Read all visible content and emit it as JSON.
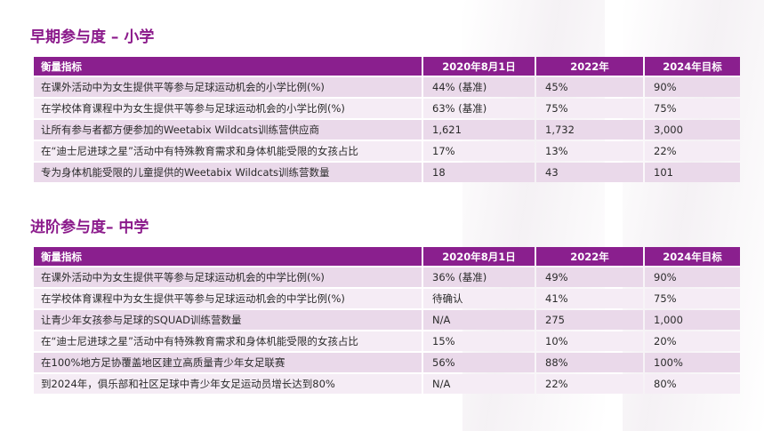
{
  "sections": [
    {
      "title": "早期参与度 – 小学",
      "headers": [
        "衡量指标",
        "2020年8月1日",
        "2022年",
        "2024年目标"
      ],
      "rows": [
        [
          "在课外活动中为女生提供平等参与足球运动机会的小学比例(%)",
          "44% (基准)",
          "45%",
          "90%"
        ],
        [
          "在学校体育课程中为女生提供平等参与足球运动机会的小学比例(%)",
          "63% (基准)",
          "75%",
          "75%"
        ],
        [
          "让所有参与者都方便参加的Weetabix Wildcats训练营供应商",
          "1,621",
          "1,732",
          "3,000"
        ],
        [
          "在“迪士尼进球之星”活动中有特殊教育需求和身体机能受限的女孩占比",
          "17%",
          "13%",
          "22%"
        ],
        [
          "专为身体机能受限的儿童提供的Weetabix Wildcats训练营数量",
          "18",
          "43",
          "101"
        ]
      ]
    },
    {
      "title": "进阶参与度– 中学",
      "headers": [
        "衡量指标",
        "2020年8月1日",
        "2022年",
        "2024年目标"
      ],
      "rows": [
        [
          "在课外活动中为女生提供平等参与足球运动机会的中学比例(%)",
          "36% (基准)",
          "49%",
          "90%"
        ],
        [
          "在学校体育课程中为女生提供平等参与足球运动机会的中学比例(%)",
          "待确认",
          "41%",
          "75%"
        ],
        [
          "让青少年女孩参与足球的SQUAD训练营数量",
          "N/A",
          "275",
          "1,000"
        ],
        [
          "在“迪士尼进球之星”活动中有特殊教育需求和身体机能受限的女孩占比",
          "15%",
          "10%",
          "20%"
        ],
        [
          "在100%地方足协覆盖地区建立高质量青少年女足联赛",
          "56%",
          "88%",
          "100%"
        ],
        [
          "到2024年，俱乐部和社区足球中青少年女足运动员增长达到80%",
          "N/A",
          "22%",
          "80%"
        ]
      ]
    }
  ]
}
